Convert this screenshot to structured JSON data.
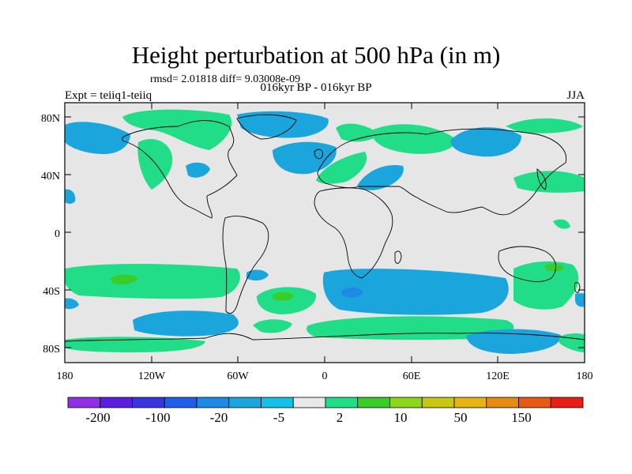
{
  "title": "Height perturbation at 500 hPa (in m)",
  "stats": "rmsd= 2.01818 diff= 9.03008e-09",
  "period": "016kyr BP - 016kyr BP",
  "experiment": "Expt = teiiq1-teiiq",
  "season": "JJA",
  "map": {
    "lat_labels": [
      "80N",
      "40N",
      "0",
      "40S",
      "80S"
    ],
    "lon_labels": [
      "180",
      "120W",
      "60W",
      "0",
      "60E",
      "120E",
      "180"
    ],
    "background_color": "#e6e6e6"
  },
  "colorbar": {
    "labels": [
      "-200",
      "-100",
      "-20",
      "-5",
      "2",
      "10",
      "50",
      "150"
    ],
    "colors": [
      "#8f2fe6",
      "#5a1ee0",
      "#3a35de",
      "#1f5ee6",
      "#1f8ae6",
      "#1aa6dc",
      "#14c0e6",
      "#e8e8e8",
      "#22dd88",
      "#3acd2a",
      "#8ed61e",
      "#c8c814",
      "#e6b414",
      "#e68c14",
      "#e65a14",
      "#e61e14"
    ]
  }
}
